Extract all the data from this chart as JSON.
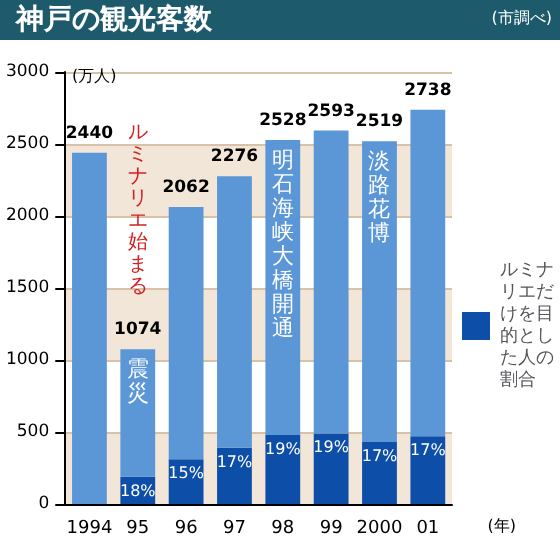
{
  "chart_data": {
    "type": "bar",
    "title": "神戸の観光客数",
    "ylabel": "(万人)",
    "xlabel": "(年)",
    "stacked": true,
    "categories": [
      "1994",
      "95",
      "96",
      "97",
      "98",
      "99",
      "2000",
      "01"
    ],
    "series": [
      {
        "name": "ルミナリエだけを目的とした人の割合",
        "color": "#0d4fa8",
        "values": [
          null,
          190,
          310,
          390,
          480,
          490,
          430,
          470
        ]
      },
      {
        "color": "#5b96d6",
        "values": [
          2440,
          884,
          1752,
          1886,
          2048,
          2103,
          2089,
          2268
        ]
      }
    ],
    "totals": [
      "2440",
      "1074",
      "2062",
      "2276",
      "2528",
      "2593",
      "2519",
      "2738"
    ],
    "ylim": [
      0,
      3000
    ],
    "yticks": [
      0,
      500,
      1000,
      1500,
      2000,
      2500,
      3000
    ],
    "grid": "y",
    "legend": "right",
    "annotations": [
      "(市調べ)",
      "ルミナリエ始まる",
      {
        "text": "震災",
        "x": "95",
        "y": 1074
      },
      {
        "text": "明石海峡大橋開通",
        "x": "98",
        "y": 2528
      },
      {
        "text": "淡路花博",
        "x": "2000",
        "y": 2519
      },
      {
        "text": "18%",
        "x": "95",
        "y": 190
      },
      {
        "text": "15%",
        "x": "96",
        "y": 310
      },
      {
        "text": "17%",
        "x": "97",
        "y": 390
      },
      {
        "text": "19%",
        "x": "98",
        "y": 480
      },
      {
        "text": "19%",
        "x": "99",
        "y": 490
      },
      {
        "text": "17%",
        "x": "2000",
        "y": 430
      },
      {
        "text": "17%",
        "x": "01",
        "y": 470
      }
    ]
  }
}
